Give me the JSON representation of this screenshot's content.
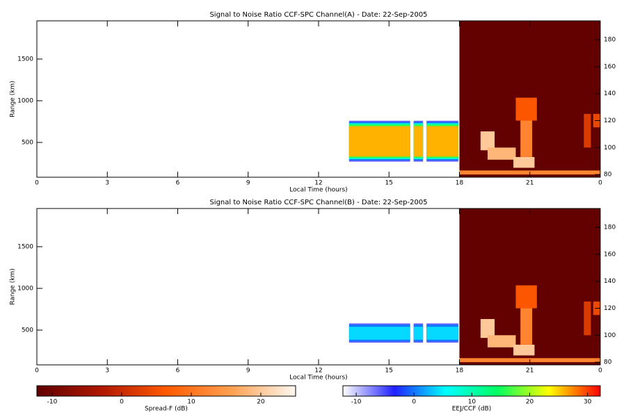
{
  "chart_data": [
    {
      "type": "heatmap",
      "title": "Signal to Noise Ratio CCF-SPC Channel(A) - Date: 22-Sep-2005",
      "xlabel": "Local Time (hours)",
      "ylabel": "Range (km)",
      "xlim": [
        0,
        24
      ],
      "xticks": [
        0,
        3,
        6,
        9,
        12,
        15,
        18,
        21,
        {
          "value": 24,
          "label": "0"
        }
      ],
      "ylim": [
        83,
        1958
      ],
      "yticks": [
        500,
        1000,
        1500
      ],
      "y2lim": [
        78,
        194
      ],
      "y2ticks": [
        80,
        100,
        120,
        140,
        160,
        180
      ],
      "segments": [
        [
          13.3,
          15.9
        ],
        [
          16.05,
          16.45
        ],
        [
          16.6,
          17.95
        ]
      ],
      "layers": [
        {
          "km": [
            270,
            760
          ],
          "db": -6
        },
        {
          "km": [
            285,
            745
          ],
          "db": 0
        },
        {
          "km": [
            300,
            730
          ],
          "db": 8
        },
        {
          "km": [
            315,
            715
          ],
          "db": 16
        },
        {
          "km": [
            330,
            695
          ],
          "db": 26
        }
      ],
      "plumes": [
        {
          "t": [
            18,
            24
          ],
          "h": [
            78,
            194
          ],
          "db": -12
        },
        {
          "t": [
            18,
            24
          ],
          "h": [
            80,
            83
          ],
          "db": 12
        },
        {
          "t": [
            18.9,
            19.5
          ],
          "h": [
            98,
            112
          ],
          "db": 20
        },
        {
          "t": [
            19.2,
            20.4
          ],
          "h": [
            91,
            100
          ],
          "db": 18
        },
        {
          "t": [
            20.3,
            21.2
          ],
          "h": [
            85,
            93
          ],
          "db": 20
        },
        {
          "t": [
            20.6,
            21.1
          ],
          "h": [
            93,
            120
          ],
          "db": 12
        },
        {
          "t": [
            20.4,
            21.3
          ],
          "h": [
            120,
            137
          ],
          "db": 6
        },
        {
          "t": [
            23.3,
            23.6
          ],
          "h": [
            100,
            125
          ],
          "db": 2
        },
        {
          "t": [
            23.7,
            24
          ],
          "h": [
            115,
            125
          ],
          "db": 4
        }
      ]
    },
    {
      "type": "heatmap",
      "title": "Signal to Noise Ratio CCF-SPC Channel(B) - Date: 22-Sep-2005",
      "xlabel": "Local Time (hours)",
      "ylabel": "Range (km)",
      "xlim": [
        0,
        24
      ],
      "xticks": [
        0,
        3,
        6,
        9,
        12,
        15,
        18,
        21,
        {
          "value": 24,
          "label": "0"
        }
      ],
      "ylim": [
        83,
        1958
      ],
      "yticks": [
        500,
        1000,
        1500
      ],
      "y2lim": [
        78,
        194
      ],
      "y2ticks": [
        80,
        100,
        120,
        140,
        160,
        180
      ],
      "segments": [
        [
          13.3,
          15.9
        ],
        [
          16.05,
          16.45
        ],
        [
          16.6,
          17.95
        ]
      ],
      "layers": [
        {
          "km": [
            350,
            580
          ],
          "db": -6
        },
        {
          "km": [
            365,
            565
          ],
          "db": 0
        },
        {
          "km": [
            385,
            540
          ],
          "db": 4
        }
      ],
      "plumes": [
        {
          "t": [
            18,
            24
          ],
          "h": [
            78,
            194
          ],
          "db": -12
        },
        {
          "t": [
            18,
            24
          ],
          "h": [
            80,
            83
          ],
          "db": 12
        },
        {
          "t": [
            18.9,
            19.5
          ],
          "h": [
            98,
            112
          ],
          "db": 20
        },
        {
          "t": [
            19.2,
            20.4
          ],
          "h": [
            91,
            100
          ],
          "db": 18
        },
        {
          "t": [
            20.3,
            21.2
          ],
          "h": [
            85,
            93
          ],
          "db": 20
        },
        {
          "t": [
            20.6,
            21.1
          ],
          "h": [
            93,
            120
          ],
          "db": 12
        },
        {
          "t": [
            20.4,
            21.3
          ],
          "h": [
            120,
            137
          ],
          "db": 6
        },
        {
          "t": [
            23.3,
            23.6
          ],
          "h": [
            100,
            125
          ],
          "db": 2
        },
        {
          "t": [
            23.7,
            24
          ],
          "h": [
            115,
            125
          ],
          "db": 4
        }
      ]
    }
  ],
  "colorbars": [
    {
      "label": "Spread-F (dB)",
      "lim": [
        -12.2,
        25
      ],
      "ticks": [
        -10,
        0,
        10,
        20
      ],
      "colors": [
        "#600000",
        "#b01800",
        "#ff5a00",
        "#ffa050",
        "#fff8f0"
      ]
    },
    {
      "label": "EEJ/CCF (dB)",
      "lim": [
        -12.3,
        32.2
      ],
      "ticks": [
        -10,
        0,
        10,
        20,
        30
      ],
      "colors": [
        "#ffffff",
        "#2020ff",
        "#00ffff",
        "#00ff60",
        "#ffff00",
        "#ff0000"
      ]
    }
  ]
}
